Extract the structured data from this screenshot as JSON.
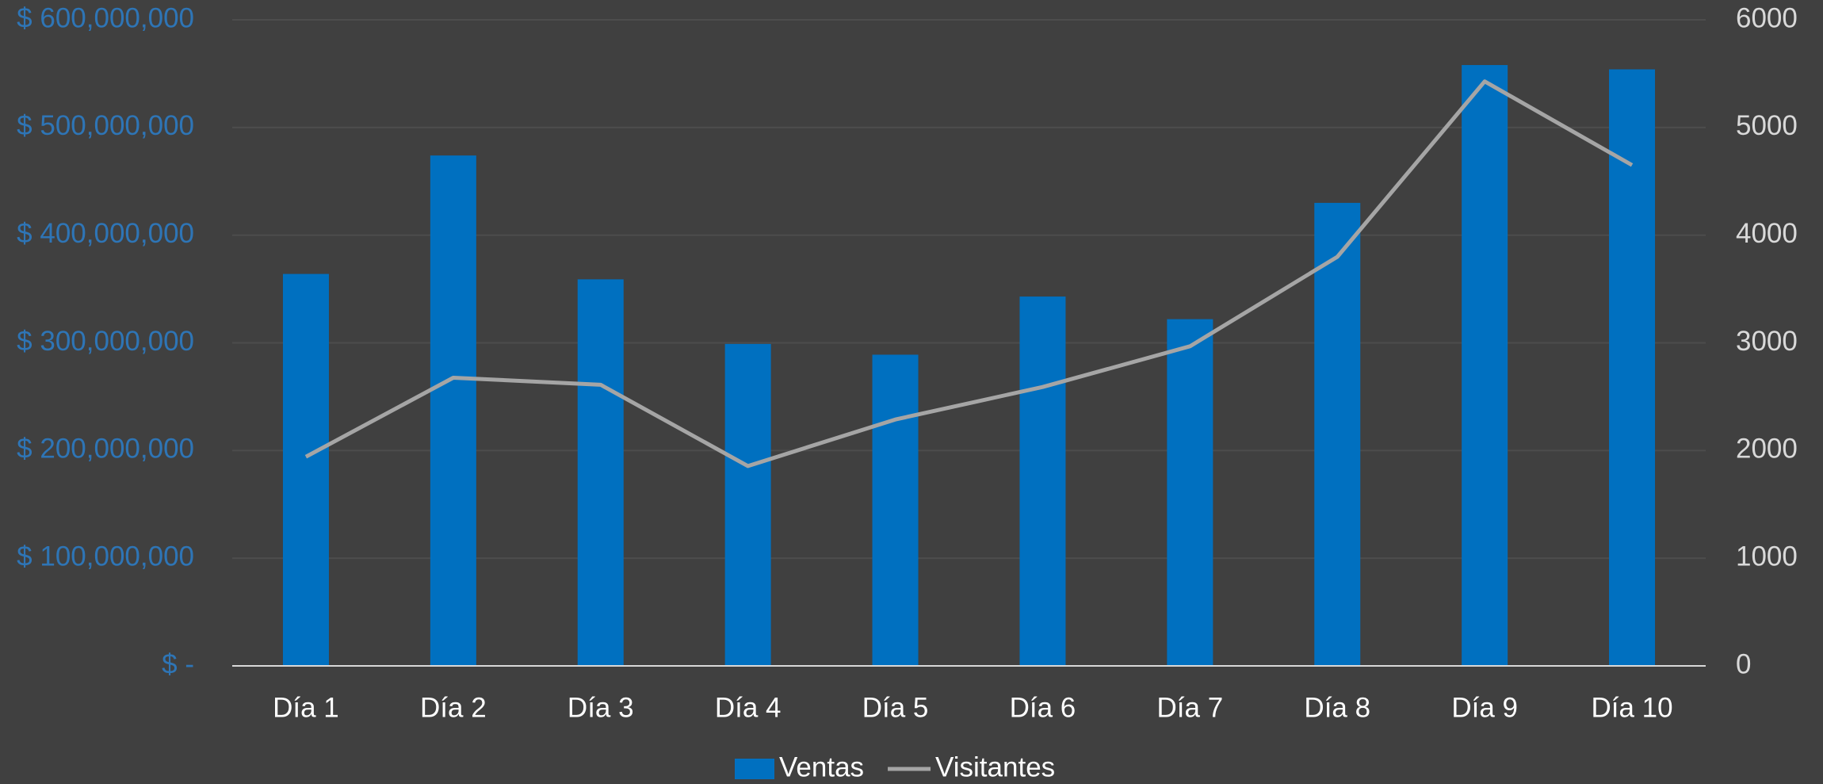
{
  "chart_data": {
    "type": "bar_line",
    "categories": [
      "Día 1",
      "Día 2",
      "Día 3",
      "Día 4",
      "Día 5",
      "Día 6",
      "Día 7",
      "Día 8",
      "Día 9",
      "Día 10"
    ],
    "series": [
      {
        "name": "Ventas",
        "type": "bar",
        "color": "#0070c0",
        "values": [
          364000000,
          474000000,
          359000000,
          299000000,
          289000000,
          343000000,
          322000000,
          430000000,
          558000000,
          554000000
        ]
      },
      {
        "name": "Visitantes",
        "type": "line",
        "axis": "y2",
        "color": "#a5a5a5",
        "values": [
          1942,
          2676,
          2611,
          1856,
          2288,
          2590,
          2968,
          3799,
          5428,
          4651
        ]
      }
    ],
    "ylim": [
      0,
      600000000
    ],
    "yticks": [
      {
        "value": 0,
        "label": "$ -"
      },
      {
        "value": 100000000,
        "label": "$ 100,000,000"
      },
      {
        "value": 200000000,
        "label": "$ 200,000,000"
      },
      {
        "value": 300000000,
        "label": "$ 300,000,000"
      },
      {
        "value": 400000000,
        "label": "$ 400,000,000"
      },
      {
        "value": 500000000,
        "label": "$ 500,000,000"
      },
      {
        "value": 600000000,
        "label": "$ 600,000,000"
      }
    ],
    "y2lim": [
      0,
      6000
    ],
    "y2ticks": [
      0,
      1000,
      2000,
      3000,
      4000,
      5000,
      6000
    ],
    "grid": true,
    "legend": "bottom"
  }
}
